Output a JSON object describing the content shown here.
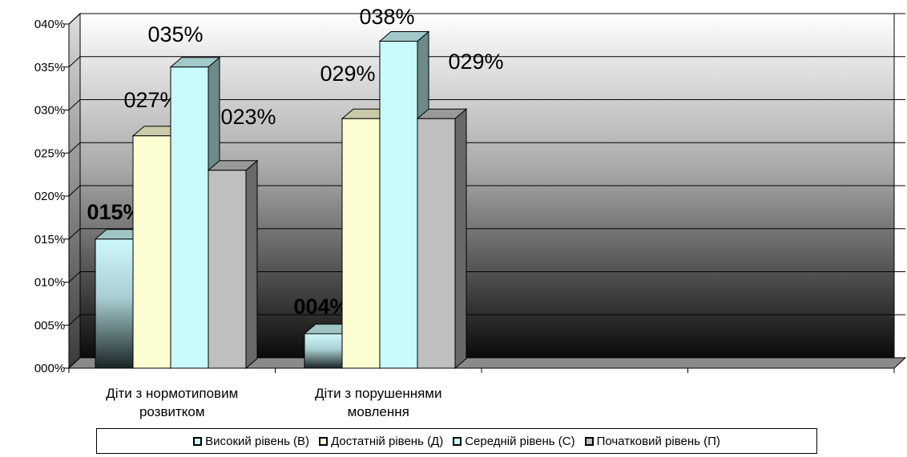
{
  "chart_data": {
    "type": "bar",
    "categories": [
      "Діти з нормотиповим розвитком",
      "Діти з порушеннями мовлення"
    ],
    "category_lines": [
      [
        "Діти з нормотиповим",
        "розвитком"
      ],
      [
        "Діти з порушеннями",
        "мовлення"
      ]
    ],
    "series": [
      {
        "name": "Високий рівень (В)",
        "values": [
          15,
          4
        ],
        "labels": [
          "015%",
          "004%"
        ],
        "color": "#c9f6f8",
        "label_bold": true
      },
      {
        "name": "Достатній рівень (Д)",
        "values": [
          27,
          29
        ],
        "labels": [
          "027%",
          "029%"
        ],
        "color": "#fdfdd2",
        "label_bold": false
      },
      {
        "name": "Середній рівень (С)",
        "values": [
          35,
          38
        ],
        "labels": [
          "035%",
          "038%"
        ],
        "color": "#c9fbfc",
        "label_bold": false
      },
      {
        "name": "Початковий рівень (П)",
        "values": [
          23,
          29
        ],
        "labels": [
          "023%",
          "029%"
        ],
        "color": "#bfbfbf",
        "label_bold": false
      }
    ],
    "y_ticks": [
      "000%",
      "005%",
      "010%",
      "015%",
      "020%",
      "025%",
      "030%",
      "035%",
      "040%"
    ],
    "ylim": [
      0,
      40
    ],
    "grid": true,
    "legend_position": "bottom"
  }
}
